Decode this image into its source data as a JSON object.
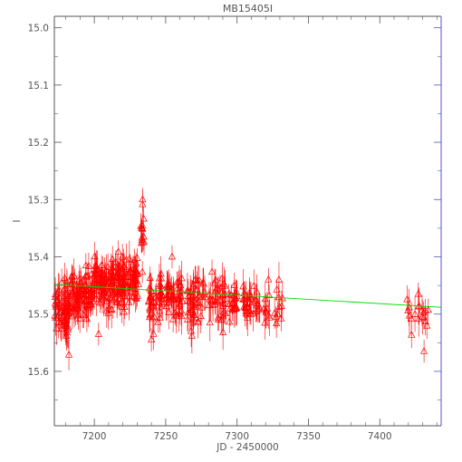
{
  "chart_data": {
    "type": "scatter",
    "title": "MB15405I",
    "xlabel": "JD - 2450000",
    "ylabel": "I",
    "xlim": [
      7172,
      7443
    ],
    "ylim": [
      15.695,
      14.98
    ],
    "y_inverted": true,
    "grid": false,
    "x_ticks": [
      7200,
      7250,
      7300,
      7350,
      7400
    ],
    "x_tick_labels": [
      "7200",
      "7250",
      "7300",
      "7350",
      "7400"
    ],
    "y_ticks": [
      15.0,
      15.1,
      15.2,
      15.3,
      15.4,
      15.5,
      15.6
    ],
    "y_tick_labels": [
      "15.0",
      "15.1",
      "15.2",
      "15.3",
      "15.4",
      "15.5",
      "15.6"
    ],
    "colors": {
      "axes": "#555555",
      "points": "#ff0000",
      "fit": "#00dd00",
      "right_axis": "#5555cc"
    },
    "fit_line": {
      "x": [
        7172,
        7443
      ],
      "y": [
        15.448,
        15.488
      ]
    },
    "series": [
      {
        "marker": "triangle-with-errorbar",
        "segments": [
          {
            "x0": 7172,
            "x1": 7183,
            "n": 60,
            "y_center": 15.49,
            "y_spread": 0.045,
            "err": 0.03
          },
          {
            "x0": 7183,
            "x1": 7196,
            "n": 70,
            "y_center": 15.465,
            "y_spread": 0.04,
            "err": 0.025
          },
          {
            "x0": 7196,
            "x1": 7212,
            "n": 80,
            "y_center": 15.45,
            "y_spread": 0.035,
            "err": 0.025
          },
          {
            "x0": 7212,
            "x1": 7226,
            "n": 80,
            "y_center": 15.445,
            "y_spread": 0.045,
            "err": 0.025
          },
          {
            "x0": 7226,
            "x1": 7231,
            "n": 30,
            "y_center": 15.44,
            "y_spread": 0.03,
            "err": 0.02
          },
          {
            "x0": 7232.5,
            "x1": 7235,
            "n": 14,
            "y_center": 15.35,
            "y_spread": 0.04,
            "err": 0.02
          },
          {
            "x0": 7238,
            "x1": 7248,
            "n": 40,
            "y_center": 15.48,
            "y_spread": 0.04,
            "err": 0.025
          },
          {
            "x0": 7250,
            "x1": 7262,
            "n": 45,
            "y_center": 15.475,
            "y_spread": 0.035,
            "err": 0.025
          },
          {
            "x0": 7265,
            "x1": 7278,
            "n": 45,
            "y_center": 15.48,
            "y_spread": 0.035,
            "err": 0.025
          },
          {
            "x0": 7280,
            "x1": 7292,
            "n": 40,
            "y_center": 15.475,
            "y_spread": 0.035,
            "err": 0.025
          },
          {
            "x0": 7294,
            "x1": 7300,
            "n": 20,
            "y_center": 15.48,
            "y_spread": 0.03,
            "err": 0.025
          },
          {
            "x0": 7304,
            "x1": 7316,
            "n": 35,
            "y_center": 15.485,
            "y_spread": 0.035,
            "err": 0.025
          },
          {
            "x0": 7318,
            "x1": 7332,
            "n": 20,
            "y_center": 15.49,
            "y_spread": 0.04,
            "err": 0.025
          },
          {
            "x0": 7419,
            "x1": 7434,
            "n": 18,
            "y_center": 15.5,
            "y_spread": 0.035,
            "err": 0.025
          }
        ],
        "points": [
          {
            "x": 7233.8,
            "y": 15.3,
            "err": 0.02
          },
          {
            "x": 7254.5,
            "y": 15.4,
            "err": 0.02
          },
          {
            "x": 7431,
            "y": 15.565,
            "err": 0.02
          },
          {
            "x": 7427,
            "y": 15.465,
            "err": 0.02
          },
          {
            "x": 7322,
            "y": 15.44,
            "err": 0.02
          },
          {
            "x": 7203,
            "y": 15.535,
            "err": 0.02
          },
          {
            "x": 7240,
            "y": 15.545,
            "err": 0.02
          }
        ]
      }
    ]
  }
}
